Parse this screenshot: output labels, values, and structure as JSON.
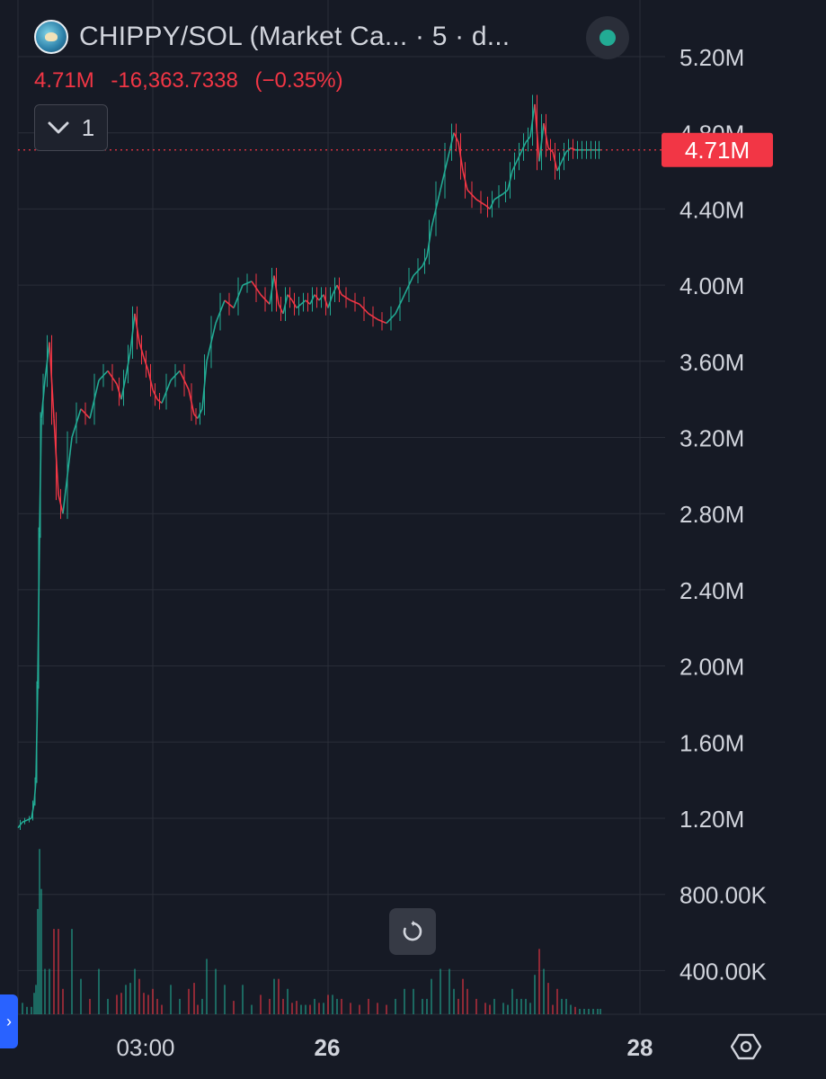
{
  "header": {
    "title": "CHIPPY/SOL (Market Ca...  · 5 · d...",
    "last_value": "4.71M",
    "change": "-16,363.7338",
    "change_pct": "(−0.35%)",
    "collapse_count": "1",
    "logo_icon": "token-avatar-icon",
    "status_color": "#22ab94"
  },
  "colors": {
    "up": "#22ab94",
    "down": "#f23645",
    "grid": "#2a2e39",
    "axis_text": "#d1d4dc",
    "background": "#161a25"
  },
  "price_label": "4.71M",
  "chart_data": {
    "type": "candlestick",
    "title": "CHIPPY/SOL (Market Cap)",
    "interval": "5",
    "y_ticks": [
      "5.20M",
      "4.80M",
      "4.40M",
      "4.00M",
      "3.60M",
      "3.20M",
      "2.80M",
      "2.40M",
      "2.00M",
      "1.60M",
      "1.20M",
      "800.00K",
      "400.00K"
    ],
    "y_tick_values": [
      5200000,
      4800000,
      4400000,
      4000000,
      3600000,
      3200000,
      2800000,
      2400000,
      2000000,
      1600000,
      1200000,
      800000,
      400000
    ],
    "x_ticks": [
      "03:00",
      "26",
      "28"
    ],
    "ylim": [
      0,
      5300000
    ],
    "last_price": 4710000,
    "grid": true,
    "series": [
      {
        "name": "Market Cap",
        "x": [
          0,
          5,
          10,
          15,
          18,
          20,
          22,
          24,
          26,
          30,
          35,
          40,
          45,
          50,
          60,
          70,
          80,
          90,
          100,
          110,
          115,
          120,
          125,
          130,
          135,
          140,
          145,
          150,
          155,
          160,
          170,
          180,
          190,
          196,
          200,
          205,
          210,
          220,
          230,
          240,
          250,
          260,
          270,
          280,
          285,
          290,
          295,
          300,
          305,
          310,
          315,
          320,
          325,
          330,
          335,
          340,
          345,
          350,
          355,
          360,
          370,
          380,
          390,
          400,
          410,
          420,
          430,
          440,
          450,
          455,
          460,
          470,
          480,
          485,
          490,
          495,
          500,
          510,
          520,
          525,
          530,
          540,
          545,
          550,
          555,
          560,
          565,
          570,
          575,
          580,
          585,
          590,
          595,
          600,
          605,
          610,
          615,
          620,
          625,
          630,
          635,
          640,
          645,
          648
        ],
        "values": [
          1150000,
          1180000,
          1190000,
          1200000,
          1280000,
          1400000,
          1900000,
          2700000,
          3300000,
          3500000,
          3700000,
          3300000,
          2900000,
          2800000,
          3200000,
          3350000,
          3300000,
          3500000,
          3550000,
          3480000,
          3400000,
          3520000,
          3650000,
          3850000,
          3700000,
          3620000,
          3550000,
          3450000,
          3400000,
          3380000,
          3500000,
          3550000,
          3450000,
          3320000,
          3300000,
          3350000,
          3600000,
          3800000,
          3920000,
          3880000,
          4000000,
          4020000,
          3950000,
          3900000,
          4050000,
          3900000,
          3850000,
          3950000,
          3920000,
          3880000,
          3900000,
          3920000,
          3900000,
          3950000,
          3920000,
          3950000,
          3880000,
          3950000,
          4000000,
          3950000,
          3920000,
          3900000,
          3850000,
          3820000,
          3800000,
          3850000,
          3950000,
          4050000,
          4100000,
          4150000,
          4300000,
          4500000,
          4700000,
          4800000,
          4750000,
          4600000,
          4500000,
          4450000,
          4420000,
          4400000,
          4450000,
          4480000,
          4500000,
          4600000,
          4650000,
          4700000,
          4750000,
          4780000,
          4950000,
          4650000,
          4850000,
          4720000,
          4700000,
          4600000,
          4650000,
          4700000,
          4720000,
          4710000,
          4710000,
          4710000,
          4710000,
          4710000,
          4710000,
          4710000
        ]
      }
    ]
  }
}
